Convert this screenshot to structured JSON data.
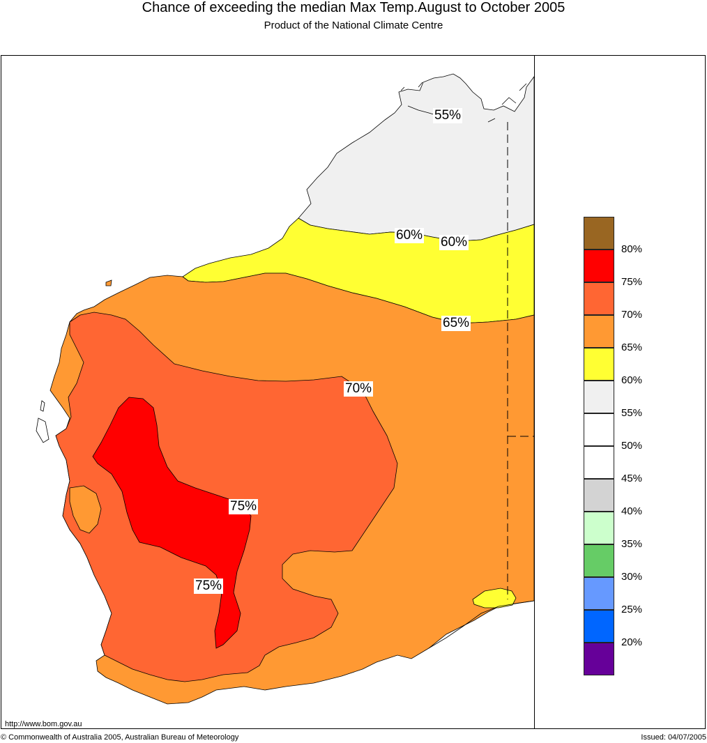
{
  "header": {
    "title": "Chance of exceeding the median Max Temp.August to October 2005",
    "subtitle": "Product of the National Climate Centre"
  },
  "map": {
    "region_fill_colors": {
      "55_60": "#f0f0f0",
      "60_65": "#ffff33",
      "65_70": "#ff9933",
      "70_75": "#ff6633",
      "75_80": "#ff0000"
    },
    "contour_labels": [
      {
        "id": "c55",
        "text": "55%"
      },
      {
        "id": "c60a",
        "text": "60%"
      },
      {
        "id": "c60b",
        "text": "60%"
      },
      {
        "id": "c65",
        "text": "65%"
      },
      {
        "id": "c70",
        "text": "70%"
      },
      {
        "id": "c75a",
        "text": "75%"
      },
      {
        "id": "c75b",
        "text": "75%"
      }
    ]
  },
  "legend": {
    "swatches": [
      {
        "color": "#996622"
      },
      {
        "color": "#ff0000"
      },
      {
        "color": "#ff6633"
      },
      {
        "color": "#ff9933"
      },
      {
        "color": "#ffff33"
      },
      {
        "color": "#f0f0f0"
      },
      {
        "color": "#ffffff"
      },
      {
        "color": "#ffffff"
      },
      {
        "color": "#d3d3d3"
      },
      {
        "color": "#ccffcc"
      },
      {
        "color": "#66cc66"
      },
      {
        "color": "#6699ff"
      },
      {
        "color": "#0066ff"
      },
      {
        "color": "#660099"
      }
    ],
    "labels": [
      "80%",
      "75%",
      "70%",
      "65%",
      "60%",
      "55%",
      "50%",
      "45%",
      "40%",
      "35%",
      "30%",
      "25%",
      "20%"
    ]
  },
  "footer": {
    "url": "http://www.bom.gov.au",
    "copyright": "© Commonwealth of Australia 2005, Australian Bureau of Meteorology",
    "issued": "Issued: 04/07/2005"
  }
}
